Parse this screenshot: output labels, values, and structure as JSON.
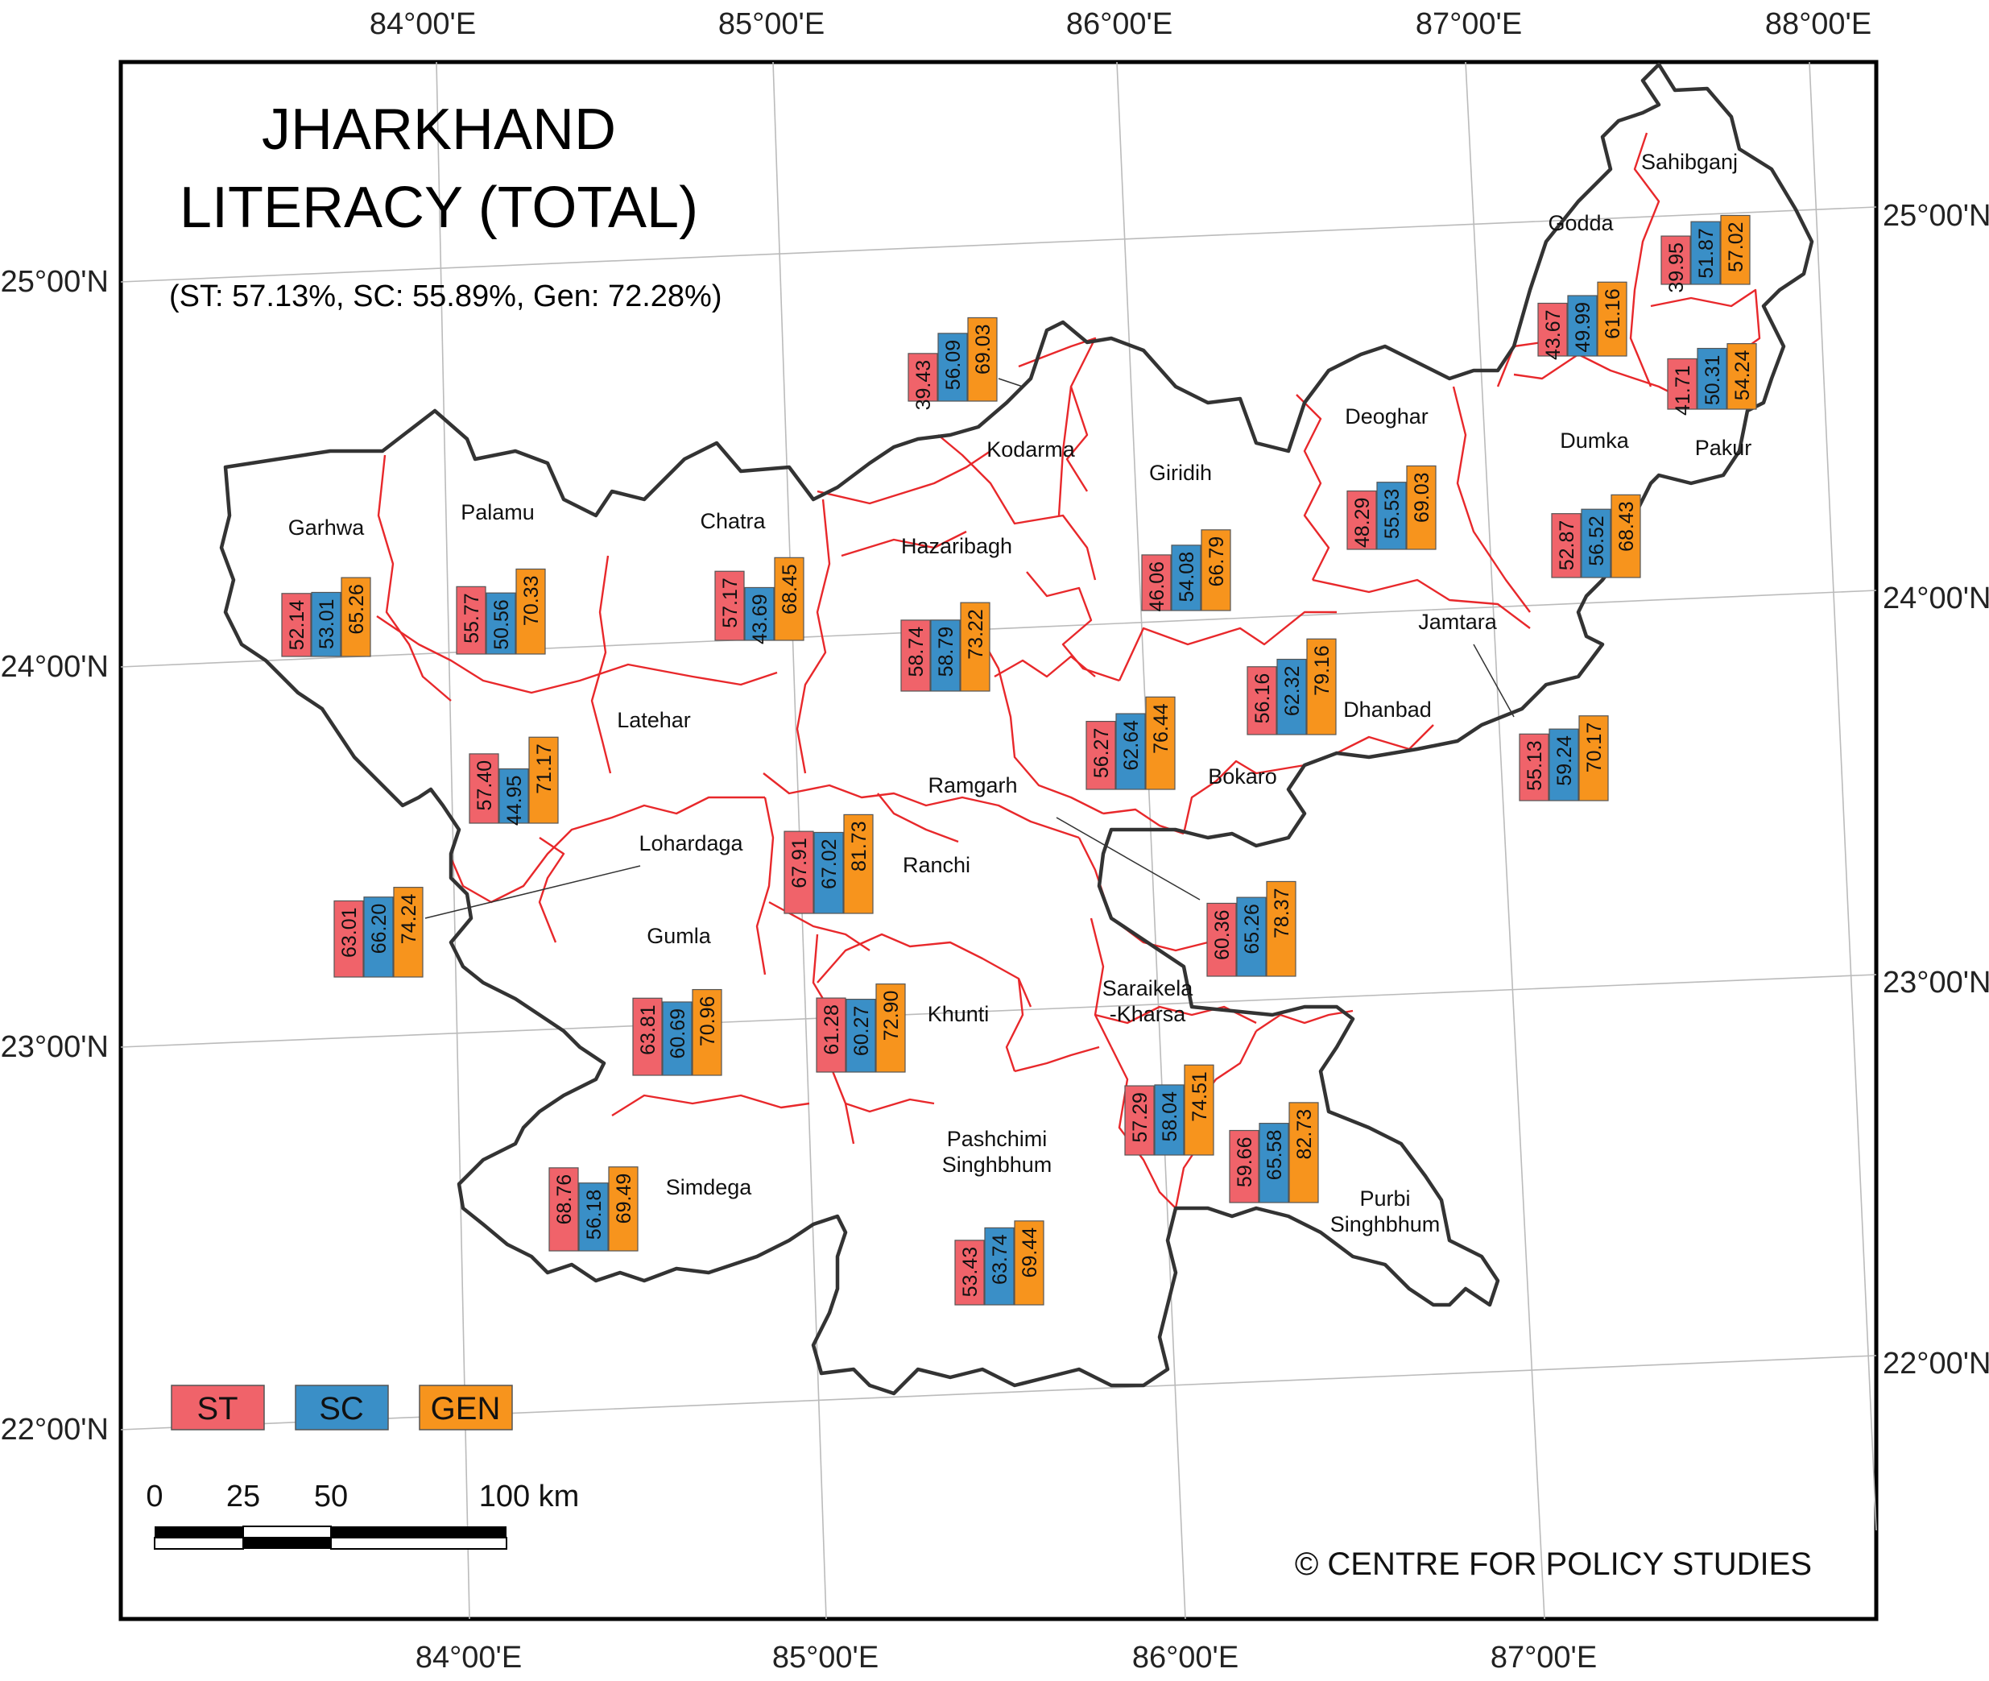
{
  "title_line1": "JHARKHAND",
  "title_line2": "LITERACY (TOTAL)",
  "subtitle": "(ST: 57.13%, SC: 55.89%, Gen: 72.28%)",
  "copyright": "© CENTRE FOR POLICY STUDIES",
  "colors": {
    "ST": "#f0636a",
    "SC": "#3a8fc7",
    "GEN": "#f7941d",
    "district_border": "#e8282b",
    "state_border": "#333333"
  },
  "legend": {
    "st": "ST",
    "sc": "SC",
    "gen": "GEN"
  },
  "scale": {
    "labels": [
      "0",
      "25",
      "50",
      "100 km"
    ]
  },
  "axes": {
    "lon_top": [
      "84°00'E",
      "85°00'E",
      "86°00'E",
      "87°00'E",
      "88°00'E"
    ],
    "lon_bottom": [
      "84°00'E",
      "85°00'E",
      "86°00'E",
      "87°00'E"
    ],
    "lat_left": [
      "25°00'N",
      "24°00'N",
      "23°00'N",
      "22°00'N"
    ],
    "lat_right": [
      "25°00'N",
      "24°00'N",
      "23°00'N",
      "22°00'N"
    ]
  },
  "districts": [
    {
      "name": "Garhwa",
      "values": [
        "52.14",
        "53.01",
        "65.26"
      ]
    },
    {
      "name": "Palamu",
      "values": [
        "55.77",
        "50.56",
        "70.33"
      ]
    },
    {
      "name": "Chatra",
      "values": [
        "57.17",
        "43.69",
        "68.45"
      ]
    },
    {
      "name": "Kodarma",
      "values": [
        "39.43",
        "56.09",
        "69.03"
      ]
    },
    {
      "name": "Hazaribagh",
      "values": [
        "58.74",
        "58.79",
        "73.22"
      ]
    },
    {
      "name": "Giridih",
      "values": [
        "46.06",
        "54.08",
        "66.79"
      ]
    },
    {
      "name": "Deoghar",
      "values": [
        "48.29",
        "55.53",
        "69.03"
      ]
    },
    {
      "name": "Godda",
      "values": [
        "43.67",
        "49.99",
        "61.16"
      ]
    },
    {
      "name": "Sahibganj",
      "values": [
        "39.95",
        "51.87",
        "57.02"
      ]
    },
    {
      "name": "Pakur",
      "values": [
        "41.71",
        "50.31",
        "54.24"
      ]
    },
    {
      "name": "Dumka",
      "values": [
        "52.87",
        "56.52",
        "68.43"
      ]
    },
    {
      "name": "Jamtara",
      "values": [
        "55.13",
        "59.24",
        "70.17"
      ]
    },
    {
      "name": "Dhanbad",
      "values": [
        "56.16",
        "62.32",
        "79.16"
      ]
    },
    {
      "name": "Bokaro",
      "values": [
        "56.27",
        "62.64",
        "76.44"
      ]
    },
    {
      "name": "Ramgarh",
      "values": [
        "60.36",
        "65.26",
        "78.37"
      ]
    },
    {
      "name": "Latehar",
      "values": [
        "57.40",
        "44.95",
        "71.17"
      ]
    },
    {
      "name": "Lohardaga",
      "values": [
        "63.01",
        "66.20",
        "74.24"
      ]
    },
    {
      "name": "Ranchi",
      "values": [
        "67.91",
        "67.02",
        "81.73"
      ]
    },
    {
      "name": "Gumla",
      "values": [
        "63.81",
        "60.69",
        "70.96"
      ]
    },
    {
      "name": "Khunti",
      "values": [
        "61.28",
        "60.27",
        "72.90"
      ]
    },
    {
      "name": "Simdega",
      "values": [
        "68.76",
        "56.18",
        "69.49"
      ]
    },
    {
      "name": "Saraikela",
      "name2": "-Kharsa",
      "values": [
        "57.29",
        "58.04",
        "74.51"
      ]
    },
    {
      "name": "Pashchimi",
      "name2": "Singhbhum",
      "values": [
        "53.43",
        "63.74",
        "69.44"
      ]
    },
    {
      "name": "Purbi",
      "name2": "Singhbhum",
      "values": [
        "59.66",
        "65.58",
        "82.73"
      ]
    }
  ]
}
